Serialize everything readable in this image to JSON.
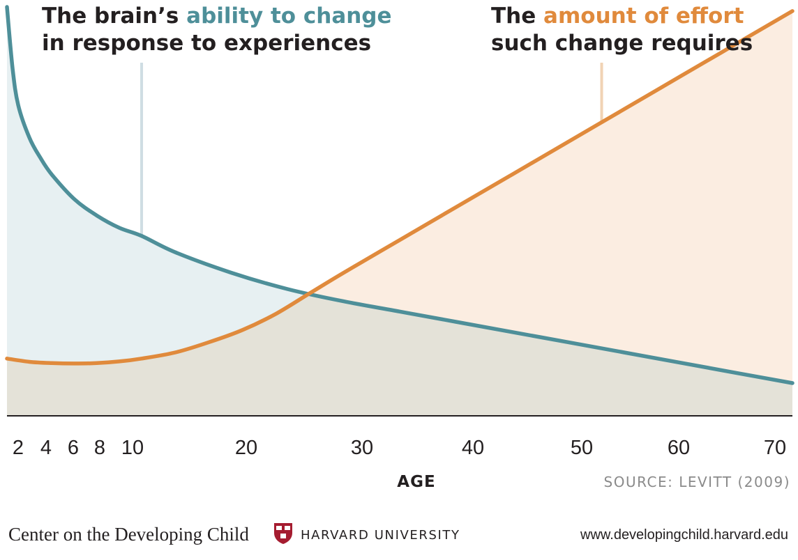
{
  "chart_data": {
    "type": "area",
    "titles": {
      "left": {
        "part1": "The brain’s ",
        "highlight": "ability to change",
        "line2": "in response to experiences"
      },
      "right": {
        "part1": "The ",
        "highlight": "amount of effort",
        "line2": "such change requires"
      }
    },
    "xlabel": "AGE",
    "source": "SOURCE: LEVITT (2009)",
    "xticks": [
      {
        "label": "2",
        "value": 2
      },
      {
        "label": "4",
        "value": 4
      },
      {
        "label": "6",
        "value": 6
      },
      {
        "label": "8",
        "value": 8
      },
      {
        "label": "10",
        "value": 10
      },
      {
        "label": "20",
        "value": 20
      },
      {
        "label": "30",
        "value": 30
      },
      {
        "label": "40",
        "value": 40
      },
      {
        "label": "50",
        "value": 50
      },
      {
        "label": "60",
        "value": 60
      },
      {
        "label": "70",
        "value": 70
      }
    ],
    "xlim": [
      0,
      70
    ],
    "ylim": [
      0,
      100
    ],
    "yaxis_labeled": false,
    "grid": false,
    "series": [
      {
        "name": "The brain’s ability to change in response to experiences",
        "color": "#4e8f99",
        "fill": "#e7f0f2",
        "points": [
          [
            0,
            100
          ],
          [
            0.5,
            85
          ],
          [
            1,
            76
          ],
          [
            2,
            68
          ],
          [
            3,
            63
          ],
          [
            4,
            59
          ],
          [
            6,
            53
          ],
          [
            8,
            49
          ],
          [
            10,
            46
          ],
          [
            12,
            44
          ],
          [
            15,
            40
          ],
          [
            20,
            35
          ],
          [
            25,
            31
          ],
          [
            30,
            28
          ],
          [
            35,
            25.5
          ],
          [
            40,
            23
          ],
          [
            45,
            20.5
          ],
          [
            50,
            18
          ],
          [
            55,
            15.5
          ],
          [
            60,
            13
          ],
          [
            65,
            10.5
          ],
          [
            70,
            8
          ]
        ]
      },
      {
        "name": "The amount of effort such change requires",
        "color": "#e08a3c",
        "fill": "#fbede1",
        "points": [
          [
            0,
            14
          ],
          [
            2,
            13.2
          ],
          [
            4,
            12.9
          ],
          [
            6,
            12.8
          ],
          [
            8,
            12.9
          ],
          [
            10,
            13.3
          ],
          [
            12,
            14
          ],
          [
            15,
            15.5
          ],
          [
            18,
            18
          ],
          [
            21,
            21
          ],
          [
            24,
            25
          ],
          [
            27,
            30
          ],
          [
            30,
            35
          ],
          [
            35,
            43
          ],
          [
            40,
            51
          ],
          [
            45,
            59
          ],
          [
            50,
            67
          ],
          [
            55,
            75
          ],
          [
            60,
            83
          ],
          [
            65,
            91
          ],
          [
            70,
            99
          ]
        ]
      }
    ],
    "markers": [
      {
        "series": 0,
        "x": 12,
        "color": "#cfdde3"
      },
      {
        "series": 1,
        "x": 53,
        "color": "#f1d3b4"
      }
    ],
    "overlap_fill": "#e4e2d8"
  },
  "footer": {
    "org": "Center on the Developing Child",
    "university": "HARVARD UNIVERSITY",
    "url": "www.developingchild.harvard.edu"
  }
}
